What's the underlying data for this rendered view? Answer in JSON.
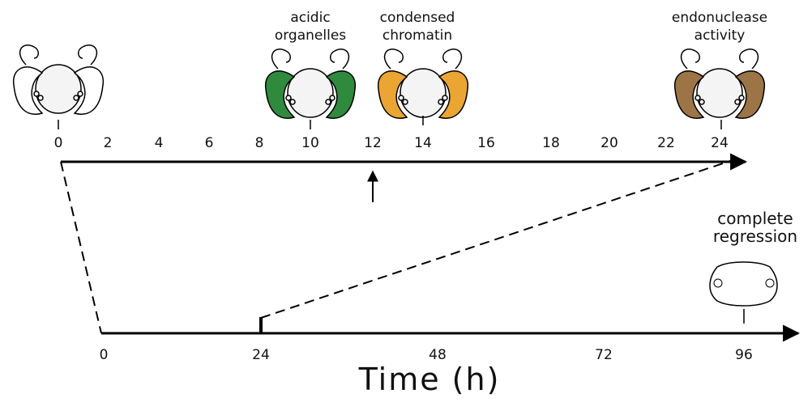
{
  "top_axis": {
    "ticks": [
      "0",
      "2",
      "4",
      "6",
      "8",
      "10",
      "12",
      "14",
      "16",
      "18",
      "20",
      "22",
      "24"
    ]
  },
  "bottom_axis": {
    "ticks": [
      "0",
      "24",
      "48",
      "72",
      "96"
    ]
  },
  "annotations": [
    {
      "lines": [
        "acidic",
        "organelles"
      ]
    },
    {
      "lines": [
        "condensed",
        "chromatin"
      ]
    },
    {
      "lines": [
        "endonuclease",
        "activity"
      ]
    },
    {
      "lines": [
        "complete",
        "regression"
      ]
    }
  ],
  "x_label": "Time (h)"
}
